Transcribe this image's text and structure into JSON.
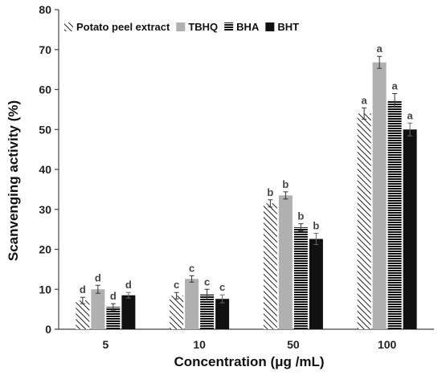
{
  "chart_data": {
    "type": "bar",
    "xlabel": "Concentration (μg /mL)",
    "ylabel": "Scanvenging activity  (%)",
    "ylim": [
      0,
      80
    ],
    "yticks": [
      0,
      10,
      20,
      30,
      40,
      50,
      60,
      70,
      80
    ],
    "categories": [
      "5",
      "10",
      "50",
      "100"
    ],
    "grid": false,
    "legend_position": "top-left",
    "series": [
      {
        "name": "Potato peel extract",
        "pattern": "diagonal-hatch",
        "color": "#222222",
        "values": [
          7.2,
          8.4,
          31.5,
          54.0
        ],
        "errors": [
          0.8,
          0.8,
          0.9,
          1.4
        ],
        "labels": [
          "d",
          "c",
          "b",
          "a"
        ]
      },
      {
        "name": "TBHQ",
        "pattern": "solid",
        "color": "#b0b0b0",
        "values": [
          10.0,
          12.6,
          33.5,
          66.8
        ],
        "errors": [
          1.0,
          0.8,
          0.9,
          1.5
        ],
        "labels": [
          "d",
          "c",
          "b",
          "a"
        ]
      },
      {
        "name": "BHA",
        "pattern": "horizontal-lines",
        "color": "#111111",
        "values": [
          5.6,
          8.7,
          25.5,
          57.3
        ],
        "errors": [
          0.8,
          1.3,
          0.9,
          1.7
        ],
        "labels": [
          "d",
          "c",
          "b",
          "a"
        ]
      },
      {
        "name": "BHT",
        "pattern": "solid",
        "color": "#111111",
        "values": [
          8.5,
          7.6,
          22.6,
          50.0
        ],
        "errors": [
          0.7,
          1.0,
          1.4,
          1.6
        ],
        "labels": [
          "d",
          "c",
          "b",
          "a"
        ]
      }
    ]
  }
}
